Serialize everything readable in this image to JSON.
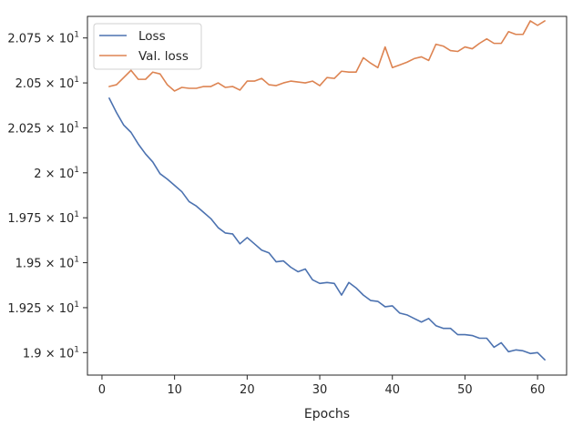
{
  "chart_data": {
    "type": "line",
    "xlabel": "Epochs",
    "ylabel": "",
    "xlim": [
      -2.0,
      64.0
    ],
    "ylim": [
      18.875,
      20.87
    ],
    "x_ticks": [
      {
        "value": 0,
        "label": "0"
      },
      {
        "value": 10,
        "label": "10"
      },
      {
        "value": 20,
        "label": "20"
      },
      {
        "value": 30,
        "label": "30"
      },
      {
        "value": 40,
        "label": "40"
      },
      {
        "value": 50,
        "label": "50"
      },
      {
        "value": 60,
        "label": "60"
      }
    ],
    "y_ticks": [
      {
        "value": 19.0,
        "mantissa": "1.9",
        "base": "10",
        "exp": "1"
      },
      {
        "value": 19.25,
        "mantissa": "1.925",
        "base": "10",
        "exp": "1"
      },
      {
        "value": 19.5,
        "mantissa": "1.95",
        "base": "10",
        "exp": "1"
      },
      {
        "value": 19.75,
        "mantissa": "1.975",
        "base": "10",
        "exp": "1"
      },
      {
        "value": 20.0,
        "mantissa": "2",
        "base": "10",
        "exp": "1"
      },
      {
        "value": 20.25,
        "mantissa": "2.025",
        "base": "10",
        "exp": "1"
      },
      {
        "value": 20.5,
        "mantissa": "2.05",
        "base": "10",
        "exp": "1"
      },
      {
        "value": 20.75,
        "mantissa": "2.075",
        "base": "10",
        "exp": "1"
      }
    ],
    "legend_position": "top-left",
    "grid": false,
    "x": [
      1,
      2,
      3,
      4,
      5,
      6,
      7,
      8,
      9,
      10,
      11,
      12,
      13,
      14,
      15,
      16,
      17,
      18,
      19,
      20,
      21,
      22,
      23,
      24,
      25,
      26,
      27,
      28,
      29,
      30,
      31,
      32,
      33,
      34,
      35,
      36,
      37,
      38,
      39,
      40,
      41,
      42,
      43,
      44,
      45,
      46,
      47,
      48,
      49,
      50,
      51,
      52,
      53,
      54,
      55,
      56,
      57,
      58,
      59,
      60,
      61
    ],
    "series": [
      {
        "name": "Loss",
        "color": "#4c72b0",
        "values": [
          20.415,
          20.335,
          20.265,
          20.225,
          20.16,
          20.105,
          20.06,
          19.995,
          19.965,
          19.93,
          19.895,
          19.84,
          19.815,
          19.78,
          19.745,
          19.695,
          19.665,
          19.66,
          19.605,
          19.64,
          19.605,
          19.57,
          19.555,
          19.505,
          19.51,
          19.475,
          19.45,
          19.465,
          19.405,
          19.385,
          19.39,
          19.385,
          19.32,
          19.39,
          19.36,
          19.32,
          19.29,
          19.285,
          19.255,
          19.26,
          19.22,
          19.21,
          19.19,
          19.17,
          19.19,
          19.15,
          19.135,
          19.135,
          19.1,
          19.1,
          19.095,
          19.08,
          19.08,
          19.03,
          19.055,
          19.005,
          19.015,
          19.01,
          18.995,
          19.0,
          18.96
        ]
      },
      {
        "name": "Val. loss",
        "color": "#dd8452",
        "values": [
          20.48,
          20.49,
          20.53,
          20.57,
          20.52,
          20.52,
          20.56,
          20.55,
          20.49,
          20.455,
          20.475,
          20.47,
          20.47,
          20.48,
          20.48,
          20.5,
          20.475,
          20.48,
          20.46,
          20.51,
          20.51,
          20.525,
          20.49,
          20.485,
          20.5,
          20.51,
          20.505,
          20.5,
          20.51,
          20.485,
          20.53,
          20.525,
          20.565,
          20.56,
          20.56,
          20.64,
          20.61,
          20.585,
          20.7,
          20.585,
          20.6,
          20.615,
          20.635,
          20.645,
          20.625,
          20.715,
          20.705,
          20.68,
          20.675,
          20.7,
          20.69,
          20.72,
          20.745,
          20.72,
          20.72,
          20.785,
          20.77,
          20.77,
          20.845,
          20.82,
          20.845
        ]
      }
    ]
  }
}
